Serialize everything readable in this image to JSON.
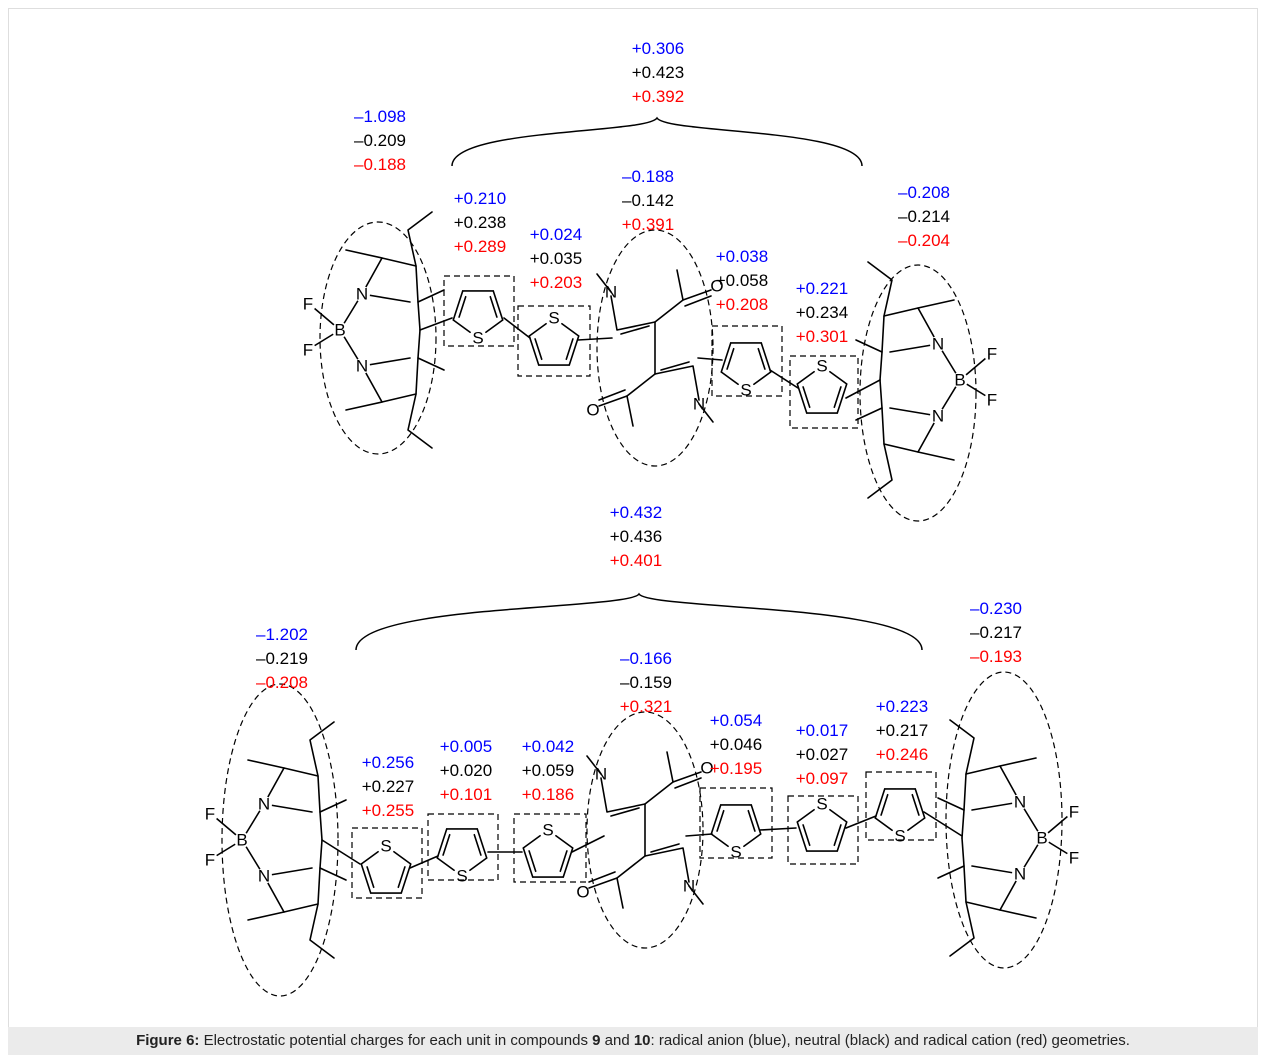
{
  "colors": {
    "anion": "#0000ff",
    "neutral": "#000000",
    "cation": "#ff0000",
    "caption_bg": "#ebebeb",
    "frame": "#dedede"
  },
  "legend_order": [
    "radical anion (blue)",
    "neutral (black)",
    "radical cation (red)"
  ],
  "compound9": {
    "bridge": [
      "+0.306",
      "+0.423",
      "+0.392"
    ],
    "bodipy_left": [
      "–1.098",
      "–0.209",
      "–0.188"
    ],
    "thiophene_1": [
      "+0.210",
      "+0.238",
      "+0.289"
    ],
    "thiophene_2": [
      "+0.024",
      "+0.035",
      "+0.203"
    ],
    "dpp": [
      "–0.188",
      "–0.142",
      "+0.391"
    ],
    "thiophene_3": [
      "+0.038",
      "+0.058",
      "+0.208"
    ],
    "thiophene_4": [
      "+0.221",
      "+0.234",
      "+0.301"
    ],
    "bodipy_right": [
      "–0.208",
      "–0.214",
      "–0.204"
    ]
  },
  "compound10": {
    "bridge": [
      "+0.432",
      "+0.436",
      "+0.401"
    ],
    "bodipy_left": [
      "–1.202",
      "–0.219",
      "–0.208"
    ],
    "thiophene_1": [
      "+0.256",
      "+0.227",
      "+0.255"
    ],
    "thiophene_2": [
      "+0.005",
      "+0.020",
      "+0.101"
    ],
    "thiophene_3": [
      "+0.042",
      "+0.059",
      "+0.186"
    ],
    "dpp": [
      "–0.166",
      "–0.159",
      "+0.321"
    ],
    "thiophene_4": [
      "+0.054",
      "+0.046",
      "+0.195"
    ],
    "thiophene_5": [
      "+0.017",
      "+0.027",
      "+0.097"
    ],
    "thiophene_6": [
      "+0.223",
      "+0.217",
      "+0.246"
    ],
    "bodipy_right": [
      "–0.230",
      "–0.217",
      "–0.193"
    ]
  },
  "atoms": {
    "N": "N",
    "B": "B",
    "F": "F",
    "S": "S",
    "O": "O"
  },
  "caption": {
    "prefix": "Figure 6:",
    "text1": " Electrostatic potential charges for each unit in compounds ",
    "c1": "9",
    "and": " and ",
    "c2": "10",
    "text2": ": radical anion (blue), neutral (black) and radical cation (red) geometries."
  }
}
